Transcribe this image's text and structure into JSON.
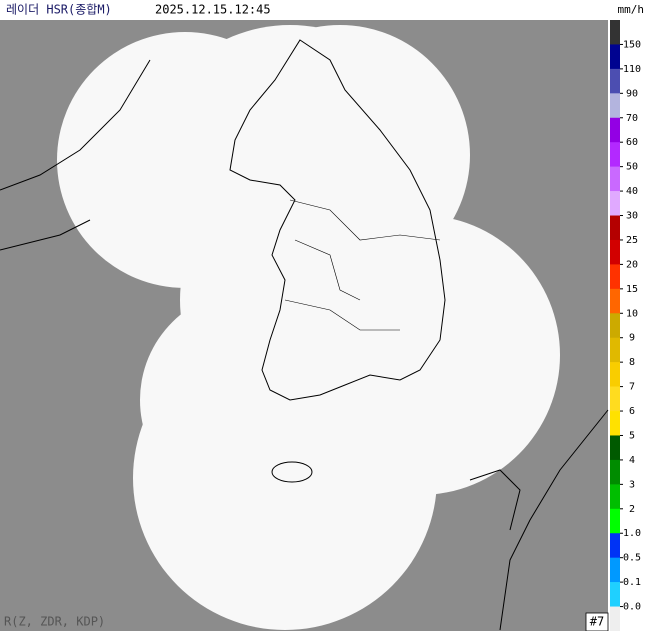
{
  "header": {
    "title": "레이더 HSR(종합M)",
    "time": "2025.12.15.12:45",
    "unit": "mm/h"
  },
  "legend": {
    "labels": [
      "150",
      "110",
      "90",
      "70",
      "60",
      "50",
      "40",
      "30",
      "25",
      "20",
      "15",
      "10",
      "9",
      "8",
      "7",
      "6",
      "5",
      "4",
      "3",
      "2",
      "1.0",
      "0.5",
      "0.1",
      "0.0"
    ],
    "colors": [
      "#333333",
      "#000390",
      "#4c4eb1",
      "#b3b4de",
      "#9300e4",
      "#b329ff",
      "#c969ff",
      "#e0a9ff",
      "#b40000",
      "#d20000",
      "#ff3200",
      "#ff6600",
      "#ccaa00",
      "#e0b900",
      "#f9cd00",
      "#ffdc1f",
      "#ffe100",
      "#005a00",
      "#008c00",
      "#00be00",
      "#00ff00",
      "#0033f5",
      "#0099ff",
      "#1fd0ff",
      "#eeeeee"
    ]
  },
  "footer": {
    "method": "R(Z, ZDR, KDP)",
    "site": "#7"
  }
}
